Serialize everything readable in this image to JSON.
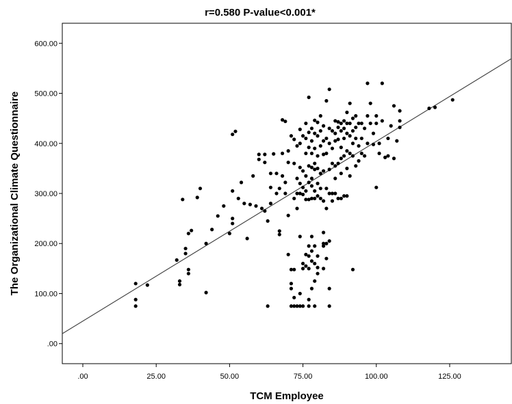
{
  "chart_data": {
    "type": "scatter",
    "title": "r=0.580    P-value<0.001*",
    "xlabel": "TCM Employee",
    "ylabel": "The Organizational Climate Questionnaire",
    "xlim": [
      -7,
      146
    ],
    "ylim": [
      -40,
      640
    ],
    "x_ticks": [
      0,
      25,
      50,
      75,
      100,
      125
    ],
    "x_tick_labels": [
      ".00",
      "25.00",
      "50.00",
      "75.00",
      "100.00",
      "125.00"
    ],
    "y_ticks": [
      0,
      100,
      200,
      300,
      400,
      500,
      600
    ],
    "y_tick_labels": [
      ".00",
      "100.00",
      "200.00",
      "300.00",
      "400.00",
      "500.00",
      "600.00"
    ],
    "grid": false,
    "fit_line": {
      "slope": 3.59,
      "intercept": 45
    },
    "colors": {
      "points": "#000000",
      "line": "#444444",
      "frame": "#000000"
    },
    "points": [
      [
        18,
        120
      ],
      [
        18,
        88
      ],
      [
        18,
        75
      ],
      [
        22,
        117
      ],
      [
        32,
        167
      ],
      [
        33,
        125
      ],
      [
        33,
        118
      ],
      [
        34,
        288
      ],
      [
        35,
        190
      ],
      [
        35,
        180
      ],
      [
        36,
        148
      ],
      [
        36,
        140
      ],
      [
        36,
        220
      ],
      [
        37,
        226
      ],
      [
        39,
        292
      ],
      [
        40,
        310
      ],
      [
        42,
        200
      ],
      [
        42,
        102
      ],
      [
        44,
        228
      ],
      [
        46,
        255
      ],
      [
        48,
        275
      ],
      [
        50,
        220
      ],
      [
        51,
        305
      ],
      [
        51,
        250
      ],
      [
        51,
        240
      ],
      [
        51,
        418
      ],
      [
        52,
        424
      ],
      [
        53,
        290
      ],
      [
        54,
        322
      ],
      [
        55,
        280
      ],
      [
        56,
        210
      ],
      [
        57,
        278
      ],
      [
        58,
        335
      ],
      [
        59,
        275
      ],
      [
        60,
        378
      ],
      [
        60,
        368
      ],
      [
        61,
        270
      ],
      [
        62,
        378
      ],
      [
        62,
        362
      ],
      [
        62,
        265
      ],
      [
        63,
        245
      ],
      [
        63,
        75
      ],
      [
        64,
        340
      ],
      [
        64,
        280
      ],
      [
        64,
        312
      ],
      [
        65,
        379
      ],
      [
        66,
        340
      ],
      [
        66,
        300
      ],
      [
        67,
        225
      ],
      [
        67,
        218
      ],
      [
        67,
        310
      ],
      [
        68,
        447
      ],
      [
        68,
        380
      ],
      [
        68,
        335
      ],
      [
        69,
        444
      ],
      [
        69,
        322
      ],
      [
        69,
        300
      ],
      [
        70,
        385
      ],
      [
        70,
        362
      ],
      [
        70,
        256
      ],
      [
        70,
        178
      ],
      [
        71,
        415
      ],
      [
        71,
        148
      ],
      [
        71,
        120
      ],
      [
        71,
        110
      ],
      [
        71,
        75
      ],
      [
        72,
        408
      ],
      [
        72,
        360
      ],
      [
        72,
        290
      ],
      [
        72,
        148
      ],
      [
        72,
        92
      ],
      [
        72,
        75
      ],
      [
        73,
        395
      ],
      [
        73,
        330
      ],
      [
        73,
        300
      ],
      [
        73,
        270
      ],
      [
        73,
        75
      ],
      [
        74,
        428
      ],
      [
        74,
        400
      ],
      [
        74,
        352
      ],
      [
        74,
        320
      ],
      [
        74,
        300
      ],
      [
        74,
        214
      ],
      [
        74,
        100
      ],
      [
        74,
        75
      ],
      [
        75,
        415
      ],
      [
        75,
        345
      ],
      [
        75,
        312
      ],
      [
        75,
        298
      ],
      [
        75,
        160
      ],
      [
        75,
        150
      ],
      [
        75,
        75
      ],
      [
        76,
        440
      ],
      [
        76,
        410
      ],
      [
        76,
        380
      ],
      [
        76,
        335
      ],
      [
        76,
        305
      ],
      [
        76,
        288
      ],
      [
        76,
        178
      ],
      [
        76,
        155
      ],
      [
        77,
        492
      ],
      [
        77,
        422
      ],
      [
        77,
        392
      ],
      [
        77,
        355
      ],
      [
        77,
        322
      ],
      [
        77,
        288
      ],
      [
        77,
        195
      ],
      [
        77,
        175
      ],
      [
        77,
        150
      ],
      [
        77,
        88
      ],
      [
        77,
        75
      ],
      [
        78,
        430
      ],
      [
        78,
        405
      ],
      [
        78,
        380
      ],
      [
        78,
        352
      ],
      [
        78,
        330
      ],
      [
        78,
        315
      ],
      [
        78,
        290
      ],
      [
        78,
        214
      ],
      [
        78,
        185
      ],
      [
        78,
        165
      ],
      [
        78,
        110
      ],
      [
        79,
        446
      ],
      [
        79,
        420
      ],
      [
        79,
        390
      ],
      [
        79,
        360
      ],
      [
        79,
        348
      ],
      [
        79,
        305
      ],
      [
        79,
        290
      ],
      [
        79,
        195
      ],
      [
        79,
        160
      ],
      [
        79,
        125
      ],
      [
        79,
        75
      ],
      [
        80,
        442
      ],
      [
        80,
        415
      ],
      [
        80,
        375
      ],
      [
        80,
        350
      ],
      [
        80,
        320
      ],
      [
        80,
        295
      ],
      [
        80,
        175
      ],
      [
        80,
        152
      ],
      [
        80,
        140
      ],
      [
        81,
        455
      ],
      [
        81,
        425
      ],
      [
        81,
        395
      ],
      [
        81,
        340
      ],
      [
        81,
        310
      ],
      [
        81,
        290
      ],
      [
        82,
        435
      ],
      [
        82,
        405
      ],
      [
        82,
        378
      ],
      [
        82,
        345
      ],
      [
        82,
        285
      ],
      [
        82,
        222
      ],
      [
        82,
        200
      ],
      [
        82,
        195
      ],
      [
        82,
        150
      ],
      [
        83,
        485
      ],
      [
        83,
        410
      ],
      [
        83,
        380
      ],
      [
        83,
        310
      ],
      [
        83,
        270
      ],
      [
        83,
        200
      ],
      [
        83,
        170
      ],
      [
        84,
        508
      ],
      [
        84,
        430
      ],
      [
        84,
        400
      ],
      [
        84,
        348
      ],
      [
        84,
        300
      ],
      [
        84,
        205
      ],
      [
        84,
        110
      ],
      [
        84,
        75
      ],
      [
        85,
        425
      ],
      [
        85,
        390
      ],
      [
        85,
        360
      ],
      [
        85,
        300
      ],
      [
        85,
        285
      ],
      [
        86,
        445
      ],
      [
        86,
        420
      ],
      [
        86,
        405
      ],
      [
        86,
        355
      ],
      [
        86,
        330
      ],
      [
        86,
        300
      ],
      [
        87,
        443
      ],
      [
        87,
        432
      ],
      [
        87,
        408
      ],
      [
        87,
        360
      ],
      [
        87,
        290
      ],
      [
        88,
        440
      ],
      [
        88,
        425
      ],
      [
        88,
        392
      ],
      [
        88,
        370
      ],
      [
        88,
        340
      ],
      [
        88,
        290
      ],
      [
        89,
        445
      ],
      [
        89,
        430
      ],
      [
        89,
        410
      ],
      [
        89,
        375
      ],
      [
        89,
        295
      ],
      [
        90,
        462
      ],
      [
        90,
        440
      ],
      [
        90,
        420
      ],
      [
        90,
        385
      ],
      [
        90,
        350
      ],
      [
        90,
        295
      ],
      [
        91,
        480
      ],
      [
        91,
        440
      ],
      [
        91,
        415
      ],
      [
        91,
        380
      ],
      [
        91,
        335
      ],
      [
        92,
        450
      ],
      [
        92,
        425
      ],
      [
        92,
        400
      ],
      [
        92,
        375
      ],
      [
        92,
        148
      ],
      [
        93,
        455
      ],
      [
        93,
        432
      ],
      [
        93,
        410
      ],
      [
        93,
        355
      ],
      [
        94,
        440
      ],
      [
        94,
        395
      ],
      [
        94,
        365
      ],
      [
        95,
        440
      ],
      [
        95,
        410
      ],
      [
        95,
        380
      ],
      [
        96,
        430
      ],
      [
        96,
        375
      ],
      [
        97,
        520
      ],
      [
        97,
        455
      ],
      [
        97,
        400
      ],
      [
        98,
        480
      ],
      [
        98,
        440
      ],
      [
        99,
        420
      ],
      [
        99,
        398
      ],
      [
        100,
        455
      ],
      [
        100,
        440
      ],
      [
        100,
        312
      ],
      [
        101,
        400
      ],
      [
        101,
        380
      ],
      [
        102,
        520
      ],
      [
        102,
        445
      ],
      [
        103,
        372
      ],
      [
        104,
        410
      ],
      [
        104,
        375
      ],
      [
        105,
        435
      ],
      [
        106,
        475
      ],
      [
        106,
        370
      ],
      [
        107,
        405
      ],
      [
        108,
        465
      ],
      [
        108,
        445
      ],
      [
        108,
        432
      ],
      [
        118,
        470
      ],
      [
        120,
        472
      ],
      [
        126,
        487
      ]
    ]
  }
}
